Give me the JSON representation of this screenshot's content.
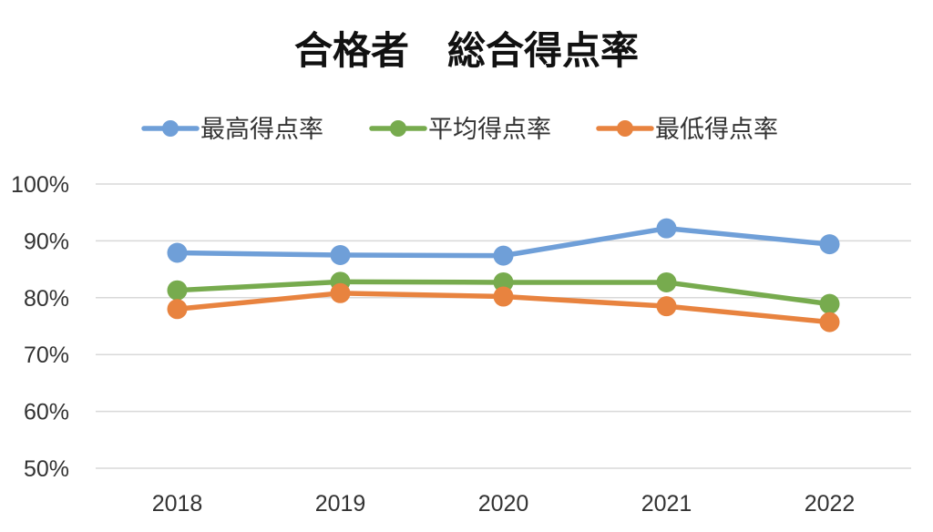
{
  "chart_data": {
    "type": "line",
    "title": "合格者　総合得点率",
    "xlabel": "",
    "ylabel": "",
    "categories": [
      "2018",
      "2019",
      "2020",
      "2021",
      "2022"
    ],
    "ylim": [
      50,
      100
    ],
    "yticks": [
      "100%",
      "90%",
      "80%",
      "70%",
      "60%",
      "50%"
    ],
    "ytick_values": [
      100,
      90,
      80,
      70,
      60,
      50
    ],
    "grid": true,
    "legend_position": "top",
    "series": [
      {
        "name": "最高得点率",
        "color": "#6f9fd8",
        "values": [
          87.9,
          87.5,
          87.4,
          92.2,
          89.4
        ]
      },
      {
        "name": "平均得点率",
        "color": "#77ab4e",
        "values": [
          81.3,
          82.8,
          82.7,
          82.7,
          78.9
        ]
      },
      {
        "name": "最低得点率",
        "color": "#e8833f",
        "values": [
          78.0,
          80.8,
          80.2,
          78.5,
          75.7
        ]
      }
    ]
  }
}
